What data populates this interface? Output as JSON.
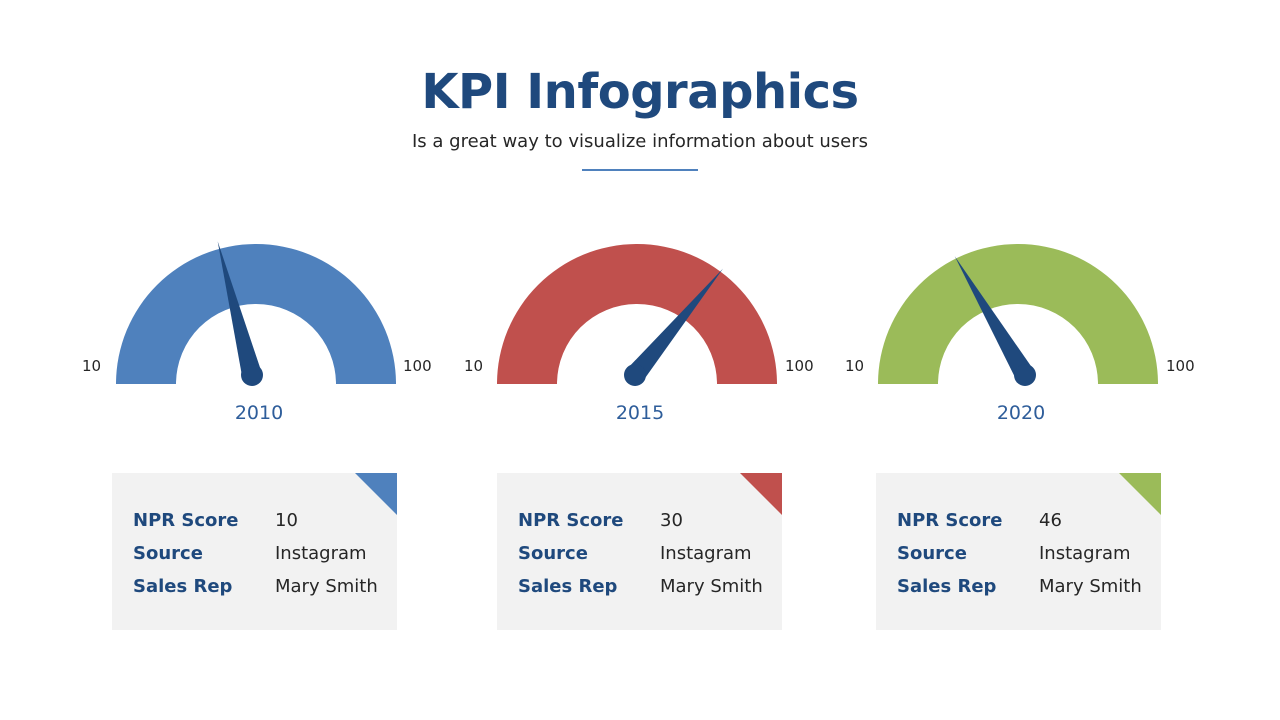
{
  "header": {
    "title": "KPI Infographics",
    "subtitle": "Is a great way to visualize information about users"
  },
  "colors": {
    "title": "#1f497d",
    "divider": "#4f81bd",
    "needle": "#1f497d",
    "card_background": "#f2f2f2"
  },
  "gauges": [
    {
      "year": "2010",
      "min_label": "10",
      "max_label": "100",
      "color": "#4f81bd",
      "needle_fraction": 0.42,
      "card": {
        "rows": [
          {
            "key": "NPR Score",
            "value": "10"
          },
          {
            "key": "Source",
            "value": "Instagram"
          },
          {
            "key": "Sales Rep",
            "value": "Mary Smith"
          }
        ]
      }
    },
    {
      "year": "2015",
      "min_label": "10",
      "max_label": "100",
      "color": "#c0504d",
      "needle_fraction": 0.72,
      "card": {
        "rows": [
          {
            "key": "NPR Score",
            "value": "30"
          },
          {
            "key": "Source",
            "value": "Instagram"
          },
          {
            "key": "Sales Rep",
            "value": "Mary Smith"
          }
        ]
      }
    },
    {
      "year": "2020",
      "min_label": "10",
      "max_label": "100",
      "color": "#9bbb59",
      "needle_fraction": 0.33,
      "card": {
        "rows": [
          {
            "key": "NPR Score",
            "value": "46"
          },
          {
            "key": "Source",
            "value": "Instagram"
          },
          {
            "key": "Sales Rep",
            "value": "Mary Smith"
          }
        ]
      }
    }
  ]
}
